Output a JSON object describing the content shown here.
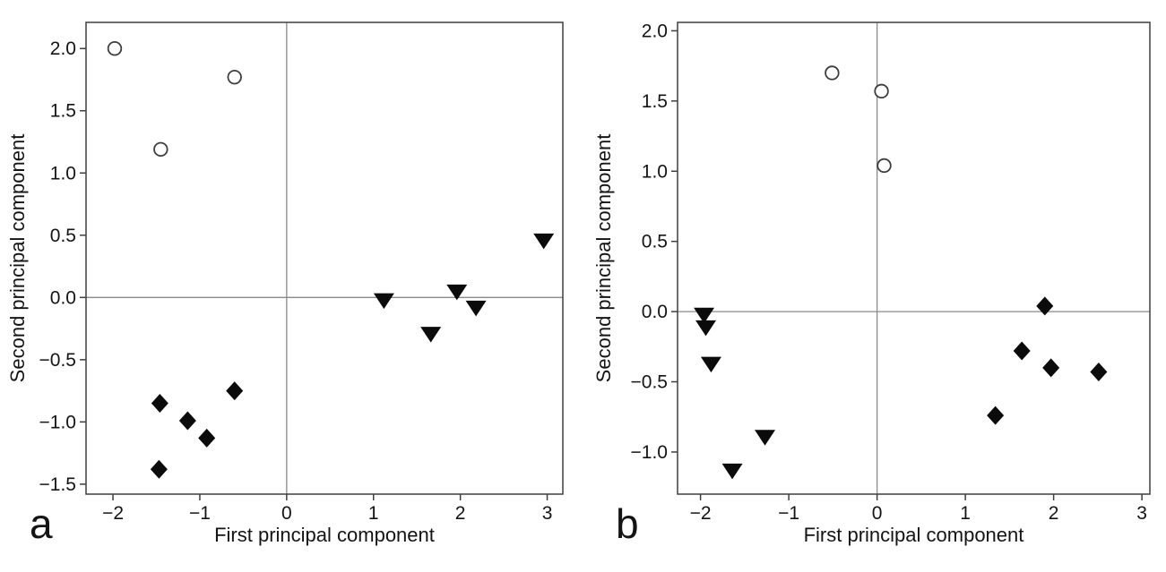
{
  "figure": {
    "background": "#ffffff",
    "text_color": "#141414",
    "panel_letters": [
      "a",
      "b"
    ]
  },
  "chart_data": [
    {
      "type": "scatter",
      "panel_label": "a",
      "xlabel": "First principal component",
      "ylabel": "Second principal component",
      "xlim": [
        -2.31,
        3.18
      ],
      "ylim": [
        -1.58,
        2.21
      ],
      "grid": false,
      "zero_reference_lines": true,
      "legend": "none",
      "xticks": {
        "values": [
          -2,
          -1,
          0,
          1,
          2,
          3
        ],
        "labels": [
          "−2",
          "−1",
          "0",
          "1",
          "2",
          "3"
        ]
      },
      "yticks": {
        "values": [
          2.0,
          1.5,
          1.0,
          0.5,
          0.0,
          -0.5,
          -1.0,
          -1.5
        ],
        "labels": [
          "2.0",
          "1.5",
          "1.0",
          "0.5",
          "0.0",
          "−0.5",
          "−1.0",
          "−1.5"
        ]
      },
      "series": [
        {
          "name": "open-circles",
          "marker": "open-circle",
          "fill": "#ffffff",
          "stroke": "#3d3d3d",
          "points": [
            [
              -1.98,
              2.0
            ],
            [
              -1.45,
              1.19
            ],
            [
              -0.6,
              1.77
            ]
          ]
        },
        {
          "name": "filled-diamonds",
          "marker": "filled-diamond",
          "fill": "#0b0b0b",
          "stroke": "none",
          "points": [
            [
              -1.46,
              -0.85
            ],
            [
              -1.14,
              -0.99
            ],
            [
              -0.92,
              -1.13
            ],
            [
              -1.47,
              -1.38
            ],
            [
              -0.6,
              -0.75
            ]
          ]
        },
        {
          "name": "filled-triangles",
          "marker": "filled-triangle-down",
          "fill": "#0b0b0b",
          "stroke": "none",
          "points": [
            [
              1.12,
              -0.02
            ],
            [
              1.66,
              -0.29
            ],
            [
              1.96,
              0.05
            ],
            [
              2.18,
              -0.08
            ],
            [
              2.96,
              0.46
            ]
          ]
        }
      ]
    },
    {
      "type": "scatter",
      "panel_label": "b",
      "xlabel": "First principal component",
      "ylabel": "Second principal component",
      "xlim": [
        -2.26,
        3.09
      ],
      "ylim": [
        -1.3,
        2.06
      ],
      "grid": false,
      "zero_reference_lines": true,
      "legend": "none",
      "xticks": {
        "values": [
          -2,
          -1,
          0,
          1,
          2,
          3
        ],
        "labels": [
          "−2",
          "−1",
          "0",
          "1",
          "2",
          "3"
        ]
      },
      "yticks": {
        "values": [
          2.0,
          1.5,
          1.0,
          0.5,
          0.0,
          -0.5,
          -1.0
        ],
        "labels": [
          "2.0",
          "1.5",
          "1.0",
          "0.5",
          "0.0",
          "−0.5",
          "−1.0"
        ]
      },
      "series": [
        {
          "name": "open-circles",
          "marker": "open-circle",
          "fill": "#ffffff",
          "stroke": "#3d3d3d",
          "points": [
            [
              -0.51,
              1.7
            ],
            [
              0.05,
              1.57
            ],
            [
              0.08,
              1.04
            ]
          ]
        },
        {
          "name": "filled-triangles",
          "marker": "filled-triangle-down",
          "fill": "#0b0b0b",
          "stroke": "none",
          "points": [
            [
              -1.96,
              -0.02
            ],
            [
              -1.94,
              -0.11
            ],
            [
              -1.88,
              -0.37
            ],
            [
              -1.27,
              -0.89
            ],
            [
              -1.64,
              -1.13
            ]
          ]
        },
        {
          "name": "filled-diamonds",
          "marker": "filled-diamond",
          "fill": "#0b0b0b",
          "stroke": "none",
          "points": [
            [
              1.9,
              0.04
            ],
            [
              1.64,
              -0.28
            ],
            [
              1.97,
              -0.4
            ],
            [
              2.51,
              -0.43
            ],
            [
              1.34,
              -0.74
            ]
          ]
        }
      ]
    }
  ]
}
